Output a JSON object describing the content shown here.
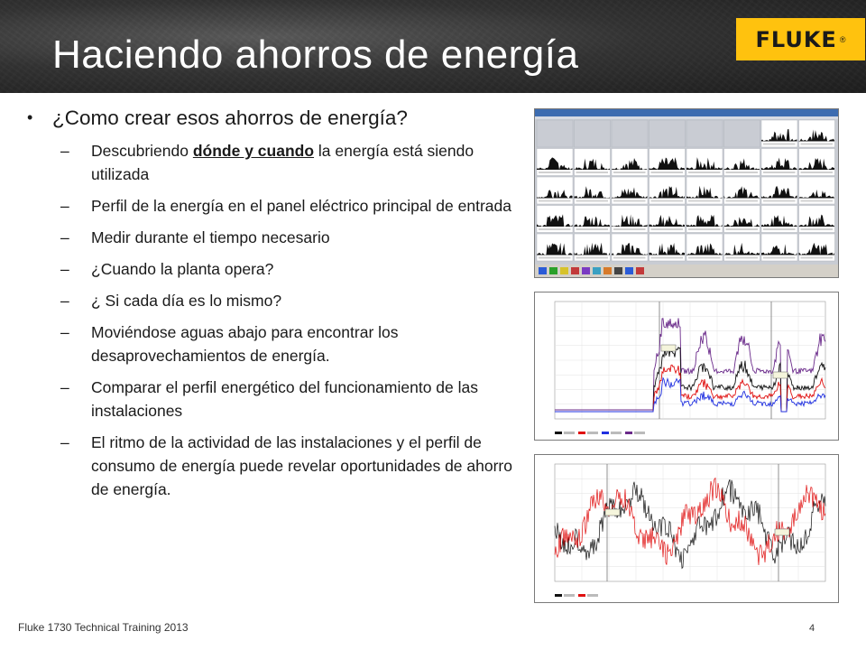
{
  "header": {
    "title": "Haciendo ahorros de energía"
  },
  "brand": {
    "name": "FLUKE",
    "reg_mark": "®",
    "accent_color": "#ffc20e"
  },
  "main_bullet": "¿Como crear esos ahorros de energía?",
  "sub_bullets": {
    "b1_before": "Descubriendo ",
    "b1_emph": "dónde y cuando",
    "b1_after": " la energía está siendo utilizada",
    "b2": "Perfil de la energía en el panel eléctrico principal de entrada",
    "b3": "Medir durante el tiempo necesario",
    "b4": "¿Cuando la planta opera?",
    "b5": "¿ Si cada día es lo mismo?",
    "b6": "Moviéndose aguas abajo para encontrar los desaprovechamientos de energía.",
    "b7": "Comparar el perfil energético del funcionamiento de las instalaciones",
    "b8": "El ritmo de la actividad de las instalaciones y el perfil de consumo de energía  puede revelar oportunidades de ahorro de energía."
  },
  "dash_glyph": "–",
  "bullet_glyph": "•",
  "footer": {
    "text": "Fluke 1730 Technical Training 2013",
    "page": "4"
  }
}
